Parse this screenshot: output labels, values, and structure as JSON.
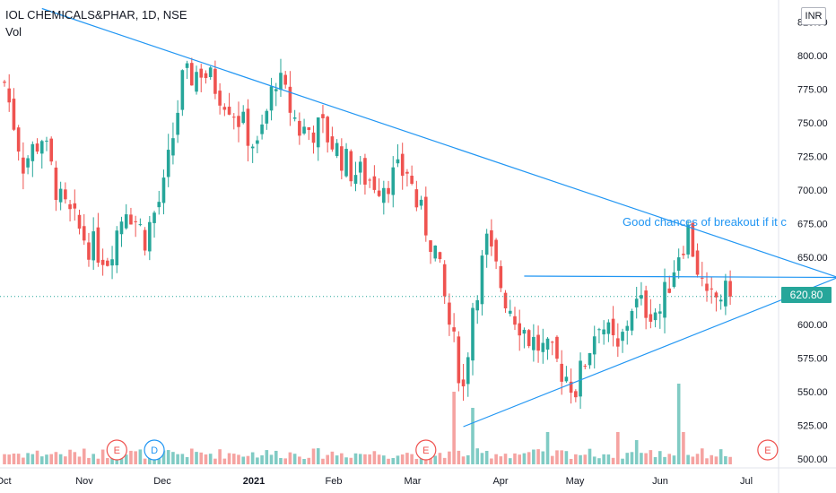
{
  "header": {
    "symbol_line": "IOL CHEMICALS&PHAR, 1D, NSE",
    "volume_label": "Vol"
  },
  "currency_button": "INR",
  "annotation": "Good chances of breakout if it c",
  "last_price_label": "620.80",
  "colors": {
    "up": "#26a69a",
    "down": "#ef5350",
    "trendline": "#2196f3",
    "volume_up": "#80cbc4",
    "volume_down": "#f5a3a1"
  },
  "chart_data": {
    "type": "candlestick",
    "title": "IOL CHEMICALS&PHAR, 1D, NSE",
    "ylim": [
      495,
      830
    ],
    "y_ticks": [
      "825.00",
      "800.00",
      "775.00",
      "750.00",
      "725.00",
      "700.00",
      "675.00",
      "650.00",
      "625.00",
      "600.00",
      "575.00",
      "550.00",
      "525.00",
      "500.00"
    ],
    "x_ticks": [
      "Oct",
      "Nov",
      "Dec",
      "2021",
      "Feb",
      "Mar",
      "Apr",
      "May",
      "Jun",
      "Jul"
    ],
    "last_price": 620.8,
    "close_path": [
      {
        "t": 0,
        "v": 780
      },
      {
        "t": 4,
        "v": 720
      },
      {
        "t": 8,
        "v": 740
      },
      {
        "t": 12,
        "v": 690
      },
      {
        "t": 18,
        "v": 660
      },
      {
        "t": 22,
        "v": 650
      },
      {
        "t": 26,
        "v": 690
      },
      {
        "t": 30,
        "v": 665
      },
      {
        "t": 34,
        "v": 700
      },
      {
        "t": 38,
        "v": 780
      },
      {
        "t": 42,
        "v": 790
      },
      {
        "t": 48,
        "v": 765
      },
      {
        "t": 54,
        "v": 730
      },
      {
        "t": 58,
        "v": 785
      },
      {
        "t": 63,
        "v": 745
      },
      {
        "t": 68,
        "v": 745
      },
      {
        "t": 74,
        "v": 715
      },
      {
        "t": 80,
        "v": 705
      },
      {
        "t": 86,
        "v": 715
      },
      {
        "t": 88,
        "v": 690
      },
      {
        "t": 92,
        "v": 655
      },
      {
        "t": 95,
        "v": 600
      },
      {
        "t": 98,
        "v": 552
      },
      {
        "t": 100,
        "v": 615
      },
      {
        "t": 103,
        "v": 660
      },
      {
        "t": 107,
        "v": 620
      },
      {
        "t": 112,
        "v": 590
      },
      {
        "t": 117,
        "v": 575
      },
      {
        "t": 122,
        "v": 553
      },
      {
        "t": 127,
        "v": 605
      },
      {
        "t": 131,
        "v": 578
      },
      {
        "t": 134,
        "v": 615
      },
      {
        "t": 140,
        "v": 610
      },
      {
        "t": 144,
        "v": 655
      },
      {
        "t": 146,
        "v": 670
      },
      {
        "t": 150,
        "v": 615
      },
      {
        "t": 153,
        "v": 622
      },
      {
        "t": 155,
        "v": 620.8
      }
    ],
    "volume_spikes": [
      {
        "t": 96,
        "v": 9
      },
      {
        "t": 100,
        "v": 7
      },
      {
        "t": 116,
        "v": 4
      },
      {
        "t": 131,
        "v": 4
      },
      {
        "t": 135,
        "v": 3
      },
      {
        "t": 144,
        "v": 10
      },
      {
        "t": 145,
        "v": 4
      }
    ],
    "events": [
      {
        "t": 24,
        "label": "E"
      },
      {
        "t": 32,
        "label": "D"
      },
      {
        "t": 90,
        "label": "E"
      },
      {
        "t": 163,
        "label": "E"
      }
    ],
    "trendlines": [
      {
        "from": {
          "t": 8,
          "v": 835
        },
        "to": {
          "t": 178,
          "v": 635
        }
      },
      {
        "from": {
          "t": 98,
          "v": 524
        },
        "to": {
          "t": 178,
          "v": 635
        }
      },
      {
        "from": {
          "t": 111,
          "v": 636
        },
        "to": {
          "t": 178,
          "v": 635
        }
      }
    ]
  }
}
